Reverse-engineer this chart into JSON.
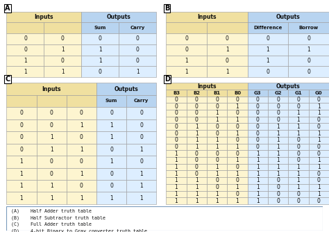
{
  "tableA": {
    "label": "A",
    "group_headers": [
      [
        "Inputs",
        2
      ],
      [
        "Outputs",
        2
      ]
    ],
    "sub_headers": [
      "",
      "",
      "Sum",
      "Carry"
    ],
    "rows": [
      [
        0,
        0,
        0,
        0
      ],
      [
        0,
        1,
        1,
        0
      ],
      [
        1,
        0,
        1,
        0
      ],
      [
        1,
        1,
        0,
        1
      ]
    ]
  },
  "tableB": {
    "label": "B",
    "group_headers": [
      [
        "Inputs",
        2
      ],
      [
        "Outputs",
        2
      ]
    ],
    "sub_headers": [
      "",
      "",
      "Difference",
      "Borrow"
    ],
    "rows": [
      [
        0,
        0,
        0,
        0
      ],
      [
        0,
        1,
        1,
        1
      ],
      [
        1,
        0,
        1,
        0
      ],
      [
        1,
        1,
        0,
        0
      ]
    ]
  },
  "tableC": {
    "label": "C",
    "group_headers": [
      [
        "Inputs",
        3
      ],
      [
        "Outputs",
        2
      ]
    ],
    "sub_headers": [
      "",
      "",
      "",
      "Sum",
      "Carry"
    ],
    "rows": [
      [
        0,
        0,
        0,
        0,
        0
      ],
      [
        0,
        0,
        1,
        1,
        0
      ],
      [
        0,
        1,
        0,
        1,
        0
      ],
      [
        0,
        1,
        1,
        0,
        1
      ],
      [
        1,
        0,
        0,
        1,
        0
      ],
      [
        1,
        0,
        1,
        0,
        1
      ],
      [
        1,
        1,
        0,
        0,
        1
      ],
      [
        1,
        1,
        1,
        1,
        1
      ]
    ]
  },
  "tableD": {
    "label": "D",
    "group_headers": [
      [
        "Inputs",
        4
      ],
      [
        "Outputs",
        4
      ]
    ],
    "sub_headers": [
      "B3",
      "B2",
      "B1",
      "B0",
      "G3",
      "G2",
      "G1",
      "G0"
    ],
    "rows": [
      [
        0,
        0,
        0,
        0,
        0,
        0,
        0,
        0
      ],
      [
        0,
        0,
        0,
        1,
        0,
        0,
        0,
        1
      ],
      [
        0,
        0,
        1,
        0,
        0,
        0,
        1,
        1
      ],
      [
        0,
        0,
        1,
        1,
        0,
        0,
        1,
        0
      ],
      [
        0,
        1,
        0,
        0,
        0,
        1,
        1,
        0
      ],
      [
        0,
        1,
        0,
        1,
        0,
        1,
        1,
        1
      ],
      [
        0,
        1,
        1,
        0,
        0,
        1,
        0,
        1
      ],
      [
        0,
        1,
        1,
        1,
        0,
        1,
        0,
        0
      ],
      [
        1,
        0,
        0,
        0,
        1,
        1,
        0,
        0
      ],
      [
        1,
        0,
        0,
        1,
        1,
        1,
        0,
        1
      ],
      [
        1,
        0,
        1,
        0,
        1,
        1,
        1,
        1
      ],
      [
        1,
        0,
        1,
        1,
        1,
        1,
        1,
        0
      ],
      [
        1,
        1,
        0,
        0,
        1,
        0,
        1,
        0
      ],
      [
        1,
        1,
        0,
        1,
        1,
        0,
        1,
        1
      ],
      [
        1,
        1,
        1,
        0,
        1,
        0,
        0,
        1
      ],
      [
        1,
        1,
        1,
        1,
        1,
        0,
        0,
        0
      ]
    ]
  },
  "input_color": "#fdf5d0",
  "output_color": "#ddeeff",
  "header_input_color": "#f0e0a0",
  "header_output_color": "#b8d4f0",
  "border_color": "#999999",
  "text_color": "#111111",
  "caption_lines": [
    "(A)    Half Adder truth table",
    "(B)    Half Subtractor truth table",
    "(C)    Full Adder truth table",
    "(D)    4-bit Binary to Gray converter truth table"
  ],
  "fig_width": 4.74,
  "fig_height": 3.34,
  "dpi": 100
}
